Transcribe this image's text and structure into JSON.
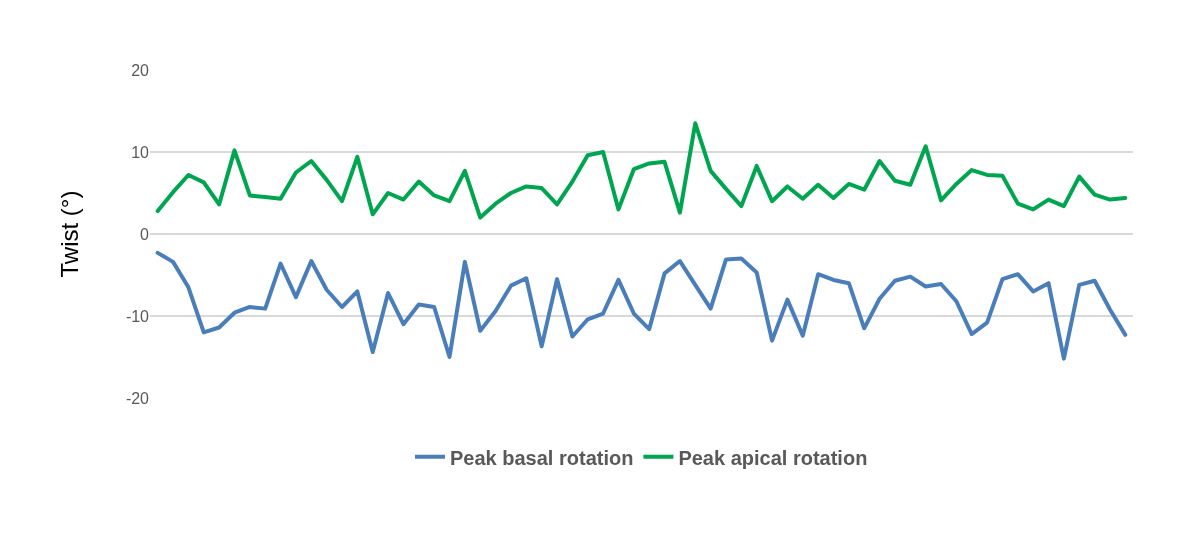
{
  "chart_data": {
    "type": "line",
    "ylabel": "Twist (°)",
    "categories": [
      null,
      null,
      null,
      null,
      null,
      null,
      null,
      null,
      null,
      null,
      null,
      null,
      null,
      null,
      null,
      null,
      null,
      null,
      null,
      null,
      null,
      null,
      null,
      null,
      null,
      null,
      null,
      null,
      null,
      null,
      null,
      null,
      null,
      null,
      null,
      null,
      null,
      null,
      null,
      null,
      null,
      null,
      null,
      null,
      null,
      null,
      null,
      null,
      null,
      null,
      null,
      null,
      null,
      null,
      null,
      null,
      null,
      null,
      null,
      null,
      null,
      null,
      null,
      null
    ],
    "ylim": [
      -20,
      20
    ],
    "yticks": [
      -20,
      -10,
      0,
      10,
      20
    ],
    "grid": "y",
    "legend": "bottom",
    "tick_labels": "y",
    "marker": "none",
    "line_style": "solid",
    "series": [
      {
        "name": "Peak basal rotation",
        "color": "#4a7ebb",
        "values": [
          -2.3,
          -3.4,
          -6.5,
          -12,
          -11.4,
          -9.6,
          -8.9,
          -9.1,
          -3.6,
          -7.7,
          -3.3,
          -6.8,
          -8.9,
          -7,
          -14.4,
          -7.2,
          -11,
          -8.6,
          -8.9,
          -15,
          -3.4,
          -11.8,
          -9.4,
          -6.3,
          -5.4,
          -13.7,
          -5.5,
          -12.5,
          -10.4,
          -9.7,
          -5.6,
          -9.7,
          -11.6,
          -4.8,
          -3.3,
          -6.2,
          -9.1,
          -3.1,
          -3,
          -4.7,
          -13,
          -8,
          -12.4,
          -4.9,
          -5.6,
          -6,
          -11.5,
          -7.9,
          -5.7,
          -5.2,
          -6.4,
          -6.1,
          -8.2,
          -12.2,
          -10.8,
          -5.5,
          -4.9,
          -7,
          -6,
          -15.2,
          -6.2,
          -5.7,
          -9.2,
          -12.3
        ]
      },
      {
        "name": "Peak apical rotation",
        "color": "#00a550",
        "values": [
          2.8,
          5.1,
          7.2,
          6.3,
          3.6,
          10.2,
          4.7,
          4.5,
          4.3,
          7.5,
          8.9,
          6.6,
          4,
          9.4,
          2.4,
          5,
          4.2,
          6.4,
          4.7,
          4,
          7.7,
          2,
          3.7,
          5,
          5.8,
          5.6,
          3.6,
          6.4,
          9.6,
          10,
          3,
          7.9,
          8.6,
          8.8,
          2.6,
          13.5,
          7.7,
          5.5,
          3.4,
          8.3,
          4,
          5.8,
          4.3,
          6,
          4.4,
          6.1,
          5.4,
          8.9,
          6.5,
          6,
          10.7,
          4.1,
          6.1,
          7.8,
          7.2,
          7.1,
          3.7,
          3,
          4.2,
          3.4,
          7,
          4.8,
          4.2,
          4.4
        ]
      }
    ]
  }
}
